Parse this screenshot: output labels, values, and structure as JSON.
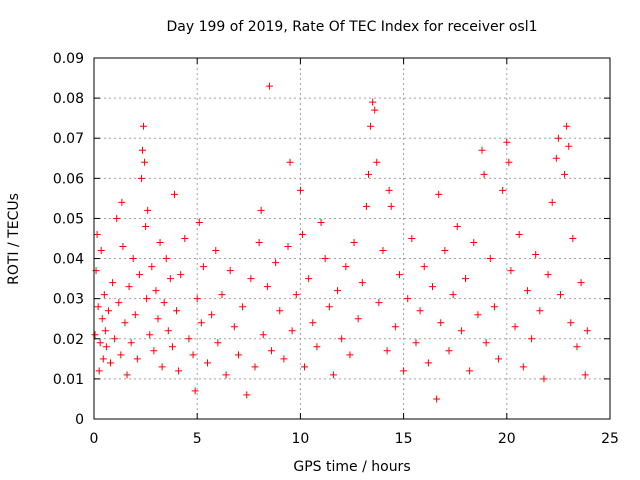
{
  "chart_data": {
    "type": "scatter",
    "title": "Day 199 of 2019, Rate Of TEC Index for receiver osl1",
    "xlabel": "GPS time / hours",
    "ylabel": "ROTI / TECUs",
    "xlim": [
      0,
      25
    ],
    "ylim": [
      0,
      0.09
    ],
    "x_ticks": [
      0,
      5,
      10,
      15,
      20,
      25
    ],
    "x_tick_labels": [
      "0",
      "5",
      "10",
      "15",
      "20",
      "25"
    ],
    "y_ticks": [
      0,
      0.01,
      0.02,
      0.03,
      0.04,
      0.05,
      0.06,
      0.07,
      0.08,
      0.09
    ],
    "y_tick_labels": [
      "0",
      "0.01",
      "0.02",
      "0.03",
      "0.04",
      "0.05",
      "0.06",
      "0.07",
      "0.08",
      "0.09"
    ],
    "grid": true,
    "marker": "plus",
    "marker_color": "#ff0000",
    "series": [
      {
        "points": [
          [
            0.05,
            0.021
          ],
          [
            0.1,
            0.037
          ],
          [
            0.15,
            0.046
          ],
          [
            0.2,
            0.028
          ],
          [
            0.25,
            0.012
          ],
          [
            0.3,
            0.019
          ],
          [
            0.35,
            0.042
          ],
          [
            0.4,
            0.025
          ],
          [
            0.45,
            0.015
          ],
          [
            0.5,
            0.031
          ],
          [
            0.55,
            0.022
          ],
          [
            0.6,
            0.018
          ],
          [
            0.7,
            0.027
          ],
          [
            0.8,
            0.014
          ],
          [
            0.9,
            0.034
          ],
          [
            1.0,
            0.02
          ],
          [
            1.1,
            0.05
          ],
          [
            1.2,
            0.029
          ],
          [
            1.3,
            0.016
          ],
          [
            1.35,
            0.054
          ],
          [
            1.4,
            0.043
          ],
          [
            1.5,
            0.024
          ],
          [
            1.6,
            0.011
          ],
          [
            1.7,
            0.033
          ],
          [
            1.8,
            0.019
          ],
          [
            1.9,
            0.04
          ],
          [
            2.0,
            0.026
          ],
          [
            2.1,
            0.015
          ],
          [
            2.2,
            0.036
          ],
          [
            2.3,
            0.06
          ],
          [
            2.35,
            0.067
          ],
          [
            2.4,
            0.073
          ],
          [
            2.45,
            0.064
          ],
          [
            2.5,
            0.048
          ],
          [
            2.55,
            0.03
          ],
          [
            2.6,
            0.052
          ],
          [
            2.7,
            0.021
          ],
          [
            2.8,
            0.038
          ],
          [
            2.9,
            0.017
          ],
          [
            3.0,
            0.032
          ],
          [
            3.1,
            0.025
          ],
          [
            3.2,
            0.044
          ],
          [
            3.3,
            0.013
          ],
          [
            3.4,
            0.029
          ],
          [
            3.5,
            0.04
          ],
          [
            3.6,
            0.022
          ],
          [
            3.7,
            0.035
          ],
          [
            3.8,
            0.018
          ],
          [
            3.9,
            0.056
          ],
          [
            4.0,
            0.027
          ],
          [
            4.1,
            0.012
          ],
          [
            4.2,
            0.036
          ],
          [
            4.4,
            0.045
          ],
          [
            4.6,
            0.02
          ],
          [
            4.8,
            0.016
          ],
          [
            4.9,
            0.007
          ],
          [
            5.0,
            0.03
          ],
          [
            5.1,
            0.049
          ],
          [
            5.2,
            0.024
          ],
          [
            5.3,
            0.038
          ],
          [
            5.5,
            0.014
          ],
          [
            5.7,
            0.026
          ],
          [
            5.9,
            0.042
          ],
          [
            6.0,
            0.019
          ],
          [
            6.2,
            0.031
          ],
          [
            6.4,
            0.011
          ],
          [
            6.6,
            0.037
          ],
          [
            6.8,
            0.023
          ],
          [
            7.0,
            0.016
          ],
          [
            7.2,
            0.028
          ],
          [
            7.4,
            0.006
          ],
          [
            7.6,
            0.035
          ],
          [
            7.8,
            0.013
          ],
          [
            8.0,
            0.044
          ],
          [
            8.1,
            0.052
          ],
          [
            8.2,
            0.021
          ],
          [
            8.4,
            0.033
          ],
          [
            8.5,
            0.083
          ],
          [
            8.6,
            0.017
          ],
          [
            8.8,
            0.039
          ],
          [
            9.0,
            0.027
          ],
          [
            9.2,
            0.015
          ],
          [
            9.4,
            0.043
          ],
          [
            9.5,
            0.064
          ],
          [
            9.6,
            0.022
          ],
          [
            9.8,
            0.031
          ],
          [
            10.0,
            0.057
          ],
          [
            10.1,
            0.046
          ],
          [
            10.2,
            0.013
          ],
          [
            10.4,
            0.035
          ],
          [
            10.6,
            0.024
          ],
          [
            10.8,
            0.018
          ],
          [
            11.0,
            0.049
          ],
          [
            11.2,
            0.04
          ],
          [
            11.4,
            0.028
          ],
          [
            11.6,
            0.011
          ],
          [
            11.8,
            0.032
          ],
          [
            12.0,
            0.02
          ],
          [
            12.2,
            0.038
          ],
          [
            12.4,
            0.016
          ],
          [
            12.6,
            0.044
          ],
          [
            12.8,
            0.025
          ],
          [
            13.0,
            0.034
          ],
          [
            13.2,
            0.053
          ],
          [
            13.3,
            0.061
          ],
          [
            13.4,
            0.073
          ],
          [
            13.5,
            0.079
          ],
          [
            13.6,
            0.077
          ],
          [
            13.7,
            0.064
          ],
          [
            13.8,
            0.029
          ],
          [
            14.0,
            0.042
          ],
          [
            14.2,
            0.017
          ],
          [
            14.3,
            0.057
          ],
          [
            14.4,
            0.053
          ],
          [
            14.6,
            0.023
          ],
          [
            14.8,
            0.036
          ],
          [
            15.0,
            0.012
          ],
          [
            15.2,
            0.03
          ],
          [
            15.4,
            0.045
          ],
          [
            15.6,
            0.019
          ],
          [
            15.8,
            0.027
          ],
          [
            16.0,
            0.038
          ],
          [
            16.2,
            0.014
          ],
          [
            16.4,
            0.033
          ],
          [
            16.6,
            0.005
          ],
          [
            16.7,
            0.056
          ],
          [
            16.8,
            0.024
          ],
          [
            17.0,
            0.042
          ],
          [
            17.2,
            0.017
          ],
          [
            17.4,
            0.031
          ],
          [
            17.6,
            0.048
          ],
          [
            17.8,
            0.022
          ],
          [
            18.0,
            0.035
          ],
          [
            18.2,
            0.012
          ],
          [
            18.4,
            0.044
          ],
          [
            18.6,
            0.026
          ],
          [
            18.8,
            0.067
          ],
          [
            18.9,
            0.061
          ],
          [
            19.0,
            0.019
          ],
          [
            19.2,
            0.04
          ],
          [
            19.4,
            0.028
          ],
          [
            19.6,
            0.015
          ],
          [
            19.8,
            0.057
          ],
          [
            20.0,
            0.069
          ],
          [
            20.1,
            0.064
          ],
          [
            20.2,
            0.037
          ],
          [
            20.4,
            0.023
          ],
          [
            20.6,
            0.046
          ],
          [
            20.8,
            0.013
          ],
          [
            21.0,
            0.032
          ],
          [
            21.2,
            0.02
          ],
          [
            21.4,
            0.041
          ],
          [
            21.6,
            0.027
          ],
          [
            21.8,
            0.01
          ],
          [
            22.0,
            0.036
          ],
          [
            22.2,
            0.054
          ],
          [
            22.4,
            0.065
          ],
          [
            22.5,
            0.07
          ],
          [
            22.6,
            0.031
          ],
          [
            22.8,
            0.061
          ],
          [
            22.9,
            0.073
          ],
          [
            23.0,
            0.068
          ],
          [
            23.1,
            0.024
          ],
          [
            23.2,
            0.045
          ],
          [
            23.4,
            0.018
          ],
          [
            23.6,
            0.034
          ],
          [
            23.8,
            0.011
          ],
          [
            23.9,
            0.022
          ]
        ]
      }
    ]
  }
}
